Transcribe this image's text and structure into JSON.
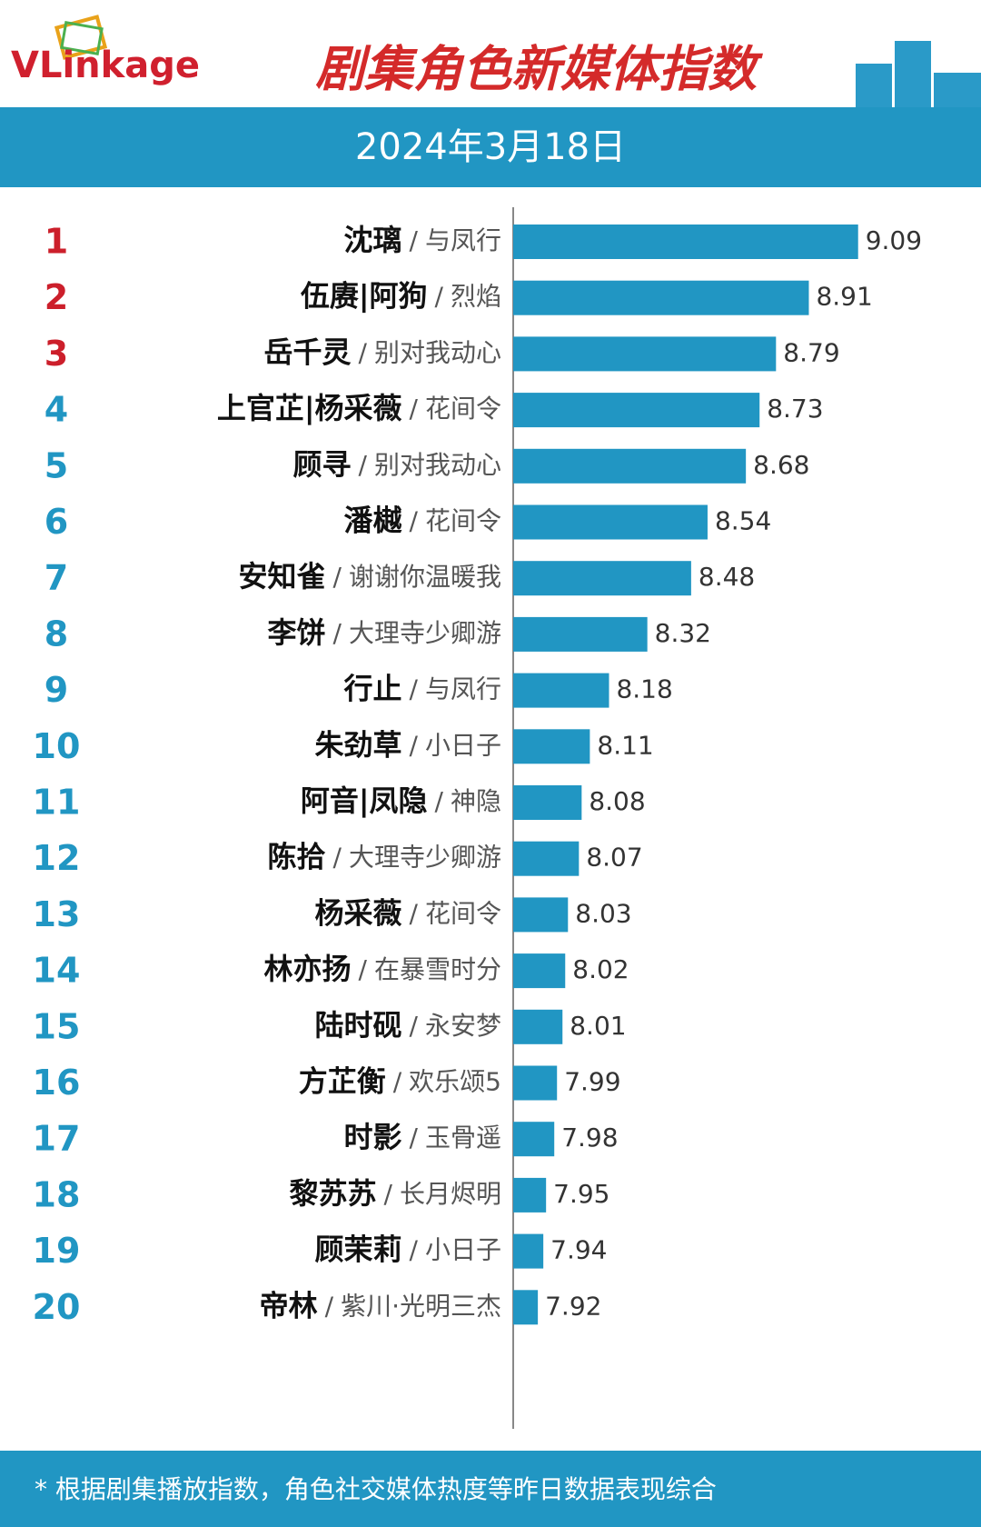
{
  "logo": "VLinkage",
  "chart_data": {
    "type": "bar",
    "title": "剧集角色新媒体指数",
    "subtitle": "2024年3月18日",
    "ranks": [
      1,
      2,
      3,
      4,
      5,
      6,
      7,
      8,
      9,
      10,
      11,
      12,
      13,
      14,
      15,
      16,
      17,
      18,
      19,
      20
    ],
    "categories": [
      "沈璃",
      "伍赓|阿狗",
      "岳千灵",
      "上官芷|杨采薇",
      "顾寻",
      "潘樾",
      "安知雀",
      "李饼",
      "行止",
      "朱劲草",
      "阿音|凤隐",
      "陈拾",
      "杨采薇",
      "林亦扬",
      "陆时砚",
      "方芷衡",
      "时影",
      "黎苏苏",
      "顾茉莉",
      "帝林"
    ],
    "separator": "/",
    "dramas": [
      "与凤行",
      "烈焰",
      "别对我动心",
      "花间令",
      "别对我动心",
      "花间令",
      "谢谢你温暖我",
      "大理寺少卿游",
      "与凤行",
      "小日子",
      "神隐",
      "大理寺少卿游",
      "花间令",
      "在暴雪时分",
      "永安梦",
      "欢乐颂5",
      "玉骨遥",
      "长月烬明",
      "小日子",
      "紫川·光明三杰"
    ],
    "values": [
      9.09,
      8.91,
      8.79,
      8.73,
      8.68,
      8.54,
      8.48,
      8.32,
      8.18,
      8.11,
      8.08,
      8.07,
      8.03,
      8.02,
      8.01,
      7.99,
      7.98,
      7.95,
      7.94,
      7.92
    ],
    "xlim": [
      7.83,
      9.3
    ],
    "color": "#2196c3",
    "highlight_top": 3,
    "highlight_color": "#cc1f2b",
    "footnote": "* 根据剧集播放指数，角色社交媒体热度等昨日数据表现综合"
  }
}
